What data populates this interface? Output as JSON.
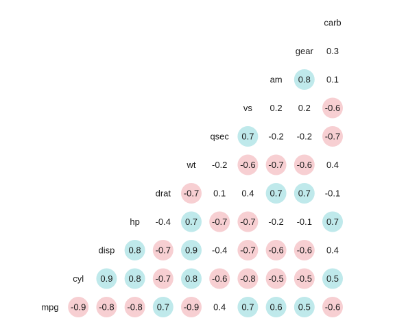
{
  "chart_data": {
    "type": "heatmap",
    "title": "",
    "variables": [
      "mpg",
      "cyl",
      "disp",
      "hp",
      "drat",
      "wt",
      "qsec",
      "vs",
      "am",
      "gear",
      "carb"
    ],
    "rows": [
      {
        "label": "carb",
        "values": []
      },
      {
        "label": "gear",
        "values": [
          0.3
        ]
      },
      {
        "label": "am",
        "values": [
          0.8,
          0.1
        ]
      },
      {
        "label": "vs",
        "values": [
          0.2,
          0.2,
          -0.6
        ]
      },
      {
        "label": "qsec",
        "values": [
          0.7,
          -0.2,
          -0.2,
          -0.7
        ]
      },
      {
        "label": "wt",
        "values": [
          -0.2,
          -0.6,
          -0.7,
          -0.6,
          0.4
        ]
      },
      {
        "label": "drat",
        "values": [
          -0.7,
          0.1,
          0.4,
          0.7,
          0.7,
          -0.1
        ]
      },
      {
        "label": "hp",
        "values": [
          -0.4,
          0.7,
          -0.7,
          -0.7,
          -0.2,
          -0.1,
          0.7
        ]
      },
      {
        "label": "disp",
        "values": [
          0.8,
          -0.7,
          0.9,
          -0.4,
          -0.7,
          -0.6,
          -0.6,
          0.4
        ]
      },
      {
        "label": "cyl",
        "values": [
          0.9,
          0.8,
          -0.7,
          0.8,
          -0.6,
          -0.8,
          -0.5,
          -0.5,
          0.5
        ]
      },
      {
        "label": "mpg",
        "values": [
          -0.9,
          -0.8,
          -0.8,
          0.7,
          -0.9,
          0.4,
          0.7,
          0.6,
          0.5,
          -0.6
        ]
      }
    ],
    "scale": {
      "positive_color": "#bfe9eb",
      "negative_color": "#f7cfd2",
      "neutral_color": "#ffffff",
      "circle_threshold": 0.5
    },
    "legend": "none",
    "grid": false
  }
}
